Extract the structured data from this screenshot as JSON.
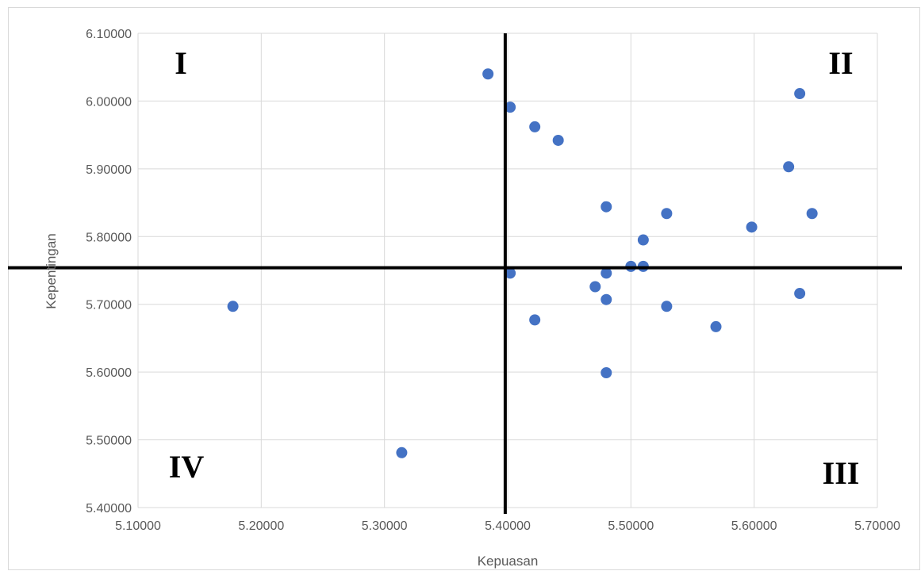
{
  "chart_data": {
    "type": "scatter",
    "title": "",
    "xlabel": "Kepuasan",
    "ylabel": "Kepentingan",
    "xlim": [
      5.1,
      5.7
    ],
    "ylim": [
      5.4,
      6.1
    ],
    "x_ticks": [
      "5.10000",
      "5.20000",
      "5.30000",
      "5.40000",
      "5.50000",
      "5.60000",
      "5.70000"
    ],
    "y_ticks": [
      "5.40000",
      "5.50000",
      "5.60000",
      "5.70000",
      "5.80000",
      "5.90000",
      "6.00000",
      "6.10000"
    ],
    "grid": true,
    "legend": "none",
    "marker_color": "#4472c4",
    "divider_x": 5.398,
    "divider_y": 5.754,
    "quadrant_labels": {
      "top_left": "I",
      "top_right": "II",
      "bottom_right": "III",
      "bottom_left": "IV"
    },
    "points": [
      {
        "x": 5.177,
        "y": 5.697
      },
      {
        "x": 5.314,
        "y": 5.481
      },
      {
        "x": 5.384,
        "y": 6.04
      },
      {
        "x": 5.402,
        "y": 5.991
      },
      {
        "x": 5.402,
        "y": 5.746
      },
      {
        "x": 5.422,
        "y": 5.962
      },
      {
        "x": 5.422,
        "y": 5.677
      },
      {
        "x": 5.441,
        "y": 5.942
      },
      {
        "x": 5.471,
        "y": 5.726
      },
      {
        "x": 5.48,
        "y": 5.844
      },
      {
        "x": 5.48,
        "y": 5.746
      },
      {
        "x": 5.48,
        "y": 5.707
      },
      {
        "x": 5.48,
        "y": 5.599
      },
      {
        "x": 5.5,
        "y": 5.756
      },
      {
        "x": 5.51,
        "y": 5.795
      },
      {
        "x": 5.51,
        "y": 5.756
      },
      {
        "x": 5.529,
        "y": 5.834
      },
      {
        "x": 5.529,
        "y": 5.697
      },
      {
        "x": 5.569,
        "y": 5.667
      },
      {
        "x": 5.598,
        "y": 5.814
      },
      {
        "x": 5.628,
        "y": 5.903
      },
      {
        "x": 5.637,
        "y": 6.011
      },
      {
        "x": 5.637,
        "y": 5.716
      },
      {
        "x": 5.647,
        "y": 5.834
      }
    ]
  }
}
